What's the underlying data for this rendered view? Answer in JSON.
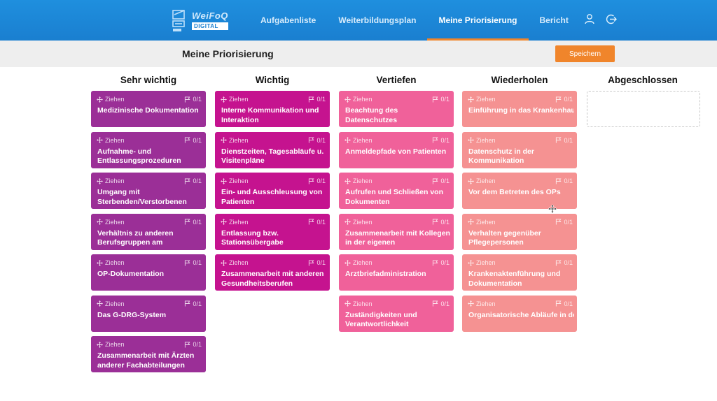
{
  "app": {
    "logo_word": "WeiFoQ",
    "logo_sub": "DIGITAL"
  },
  "nav": [
    {
      "label": "Aufgabenliste",
      "active": false
    },
    {
      "label": "Weiterbildungsplan",
      "active": false
    },
    {
      "label": "Meine Priorisierung",
      "active": true
    },
    {
      "label": "Bericht",
      "active": false
    }
  ],
  "icons": {
    "user": "user-icon",
    "logout": "logout-icon",
    "drag": "move-icon",
    "flag": "flag-icon"
  },
  "page": {
    "title": "Meine Priorisierung",
    "save_label": "Speichern"
  },
  "card_common": {
    "drag_label": "Ziehen",
    "count": "0/1"
  },
  "colors": {
    "sehr_wichtig": "#9b2f97",
    "wichtig": "#c5138f",
    "vertiefen": "#f0619a",
    "wiederholen": "#f59292",
    "accent": "#f0852b",
    "header": "#1a7fd0"
  },
  "columns": [
    {
      "title": "Sehr wichtig",
      "cards": [
        "Medizinische Dokumentation",
        "Aufnahme- und Entlassungsprozeduren",
        "Umgang mit Sterbenden/Verstorbenen",
        "Verhältnis zu anderen Berufsgruppen am",
        "OP-Dokumentation",
        "Das G-DRG-System",
        "Zusammenarbeit mit Ärzten anderer Fachabteilungen"
      ]
    },
    {
      "title": "Wichtig",
      "cards": [
        "Interne Kommunikation und Interaktion",
        "Dienstzeiten, Tagesabläufe u. Visitenpläne",
        "Ein- und Ausschleusung von Patienten",
        "Entlassung bzw. Stationsübergabe",
        "Zusammenarbeit mit anderen Gesundheitsberufen"
      ]
    },
    {
      "title": "Vertiefen",
      "cards": [
        "Beachtung des Datenschutzes",
        "Anmeldepfade von Patienten",
        "Aufrufen und Schließen von Dokumenten",
        "Zusammenarbeit mit Kollegen in der eigenen",
        "Arztbriefadministration",
        "Zuständigkeiten und Verantwortlichkeit"
      ]
    },
    {
      "title": "Wiederholen",
      "cards": [
        "Einführung in das Krankenhausinformationssystem",
        "Datenschutz in der Kommunikation",
        "Vor dem Betreten des OPs",
        "Verhalten gegenüber Pflegepersonen",
        "Krankenaktenführung und Dokumentation",
        "Organisatorische Abläufe in der Notaufnahme"
      ]
    },
    {
      "title": "Abgeschlossen",
      "cards": []
    }
  ]
}
